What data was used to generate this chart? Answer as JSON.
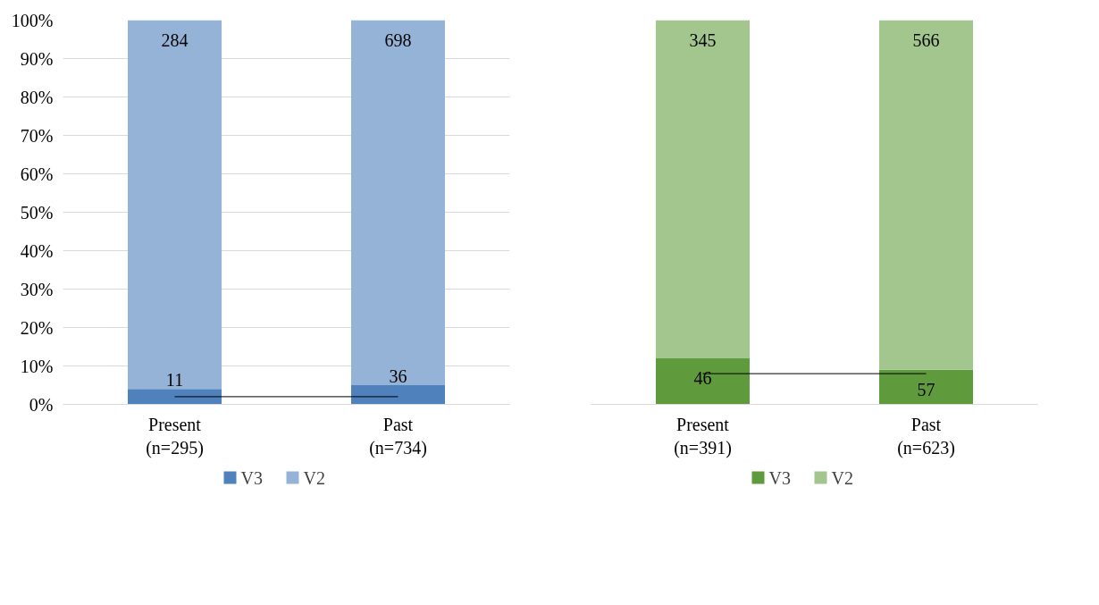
{
  "chart_data": [
    {
      "type": "bar",
      "stacked": true,
      "categories": [
        "Present\n(n=295)",
        "Past\n(n=734)"
      ],
      "ylim": [
        0,
        100
      ],
      "yticks": [
        {
          "value": 0,
          "label": "0%"
        },
        {
          "value": 10,
          "label": "10%"
        },
        {
          "value": 20,
          "label": "20%"
        },
        {
          "value": 30,
          "label": "30%"
        },
        {
          "value": 40,
          "label": "40%"
        },
        {
          "value": 50,
          "label": "50%"
        },
        {
          "value": 60,
          "label": "60%"
        },
        {
          "value": 70,
          "label": "70%"
        },
        {
          "value": 80,
          "label": "80%"
        },
        {
          "value": 90,
          "label": "90%"
        },
        {
          "value": 100,
          "label": "100%"
        }
      ],
      "grid": "y",
      "legend": "bottom",
      "series": [
        {
          "name": "V3",
          "color": "#4f81bd",
          "values": [
            4,
            5
          ]
        },
        {
          "name": "V2",
          "color": "#95b3d7",
          "values": [
            96,
            95
          ]
        },
        {
          "type": "line",
          "color": "#000000",
          "values": [
            2,
            2
          ]
        }
      ],
      "annotations": [
        {
          "text": "11",
          "x": "Present\n(n=295)",
          "y": 4
        },
        {
          "text": "36",
          "x": "Past\n(n=734)",
          "y": 5
        },
        {
          "text": "284",
          "x": "Present\n(n=295)",
          "y": 100
        },
        {
          "text": "698",
          "x": "Past\n(n=734)",
          "y": 100
        }
      ]
    },
    {
      "type": "bar",
      "stacked": true,
      "categories": [
        "Present\n(n=391)",
        "Past\n(n=623)"
      ],
      "ylim": [
        0,
        100
      ],
      "tick_labels": "x",
      "grid": "y",
      "legend": "bottom",
      "series": [
        {
          "name": "V3",
          "color": "#5f9a3c",
          "values": [
            12,
            9
          ]
        },
        {
          "name": "V2",
          "color": "#a2c68e",
          "values": [
            88,
            91
          ]
        },
        {
          "type": "line",
          "color": "#000000",
          "values": [
            8,
            8
          ]
        }
      ],
      "annotations": [
        {
          "text": "46",
          "x": "Present\n(n=391)",
          "y": 12
        },
        {
          "text": "57",
          "x": "Past\n(n=623)",
          "y": 9
        },
        {
          "text": "345",
          "x": "Present\n(n=391)",
          "y": 100
        },
        {
          "text": "566",
          "x": "Past\n(n=623)",
          "y": 100
        }
      ]
    }
  ]
}
